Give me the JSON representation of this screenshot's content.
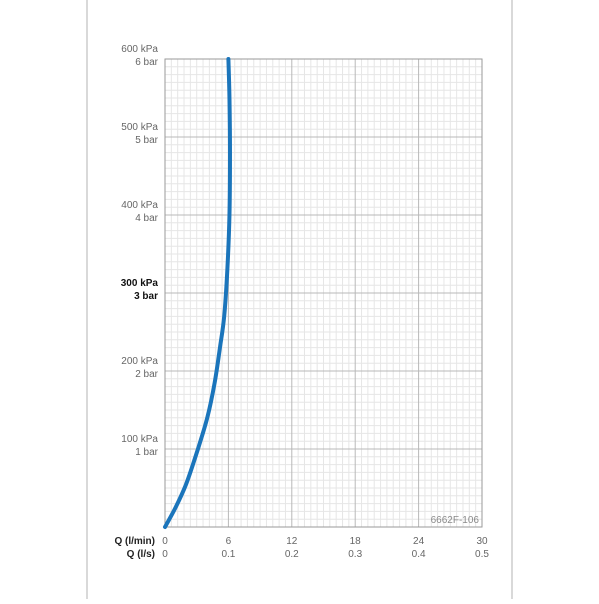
{
  "chart_data": {
    "type": "line",
    "code_label": "6662F-106",
    "x_label_primary": "Q (l/min)",
    "x_label_secondary": "Q (l/s)",
    "x_ticks_primary": [
      "0",
      "6",
      "12",
      "18",
      "24",
      "30"
    ],
    "x_ticks_secondary": [
      "0",
      "0.1",
      "0.2",
      "0.3",
      "0.4",
      "0.5"
    ],
    "xlim": [
      0,
      30
    ],
    "ylim": [
      0,
      600
    ],
    "y_ticks": [
      {
        "value": 100,
        "kpa": "100 kPa",
        "bar": "1 bar",
        "bold": false
      },
      {
        "value": 200,
        "kpa": "200 kPa",
        "bar": "2 bar",
        "bold": false
      },
      {
        "value": 300,
        "kpa": "300 kPa",
        "bar": "3 bar",
        "bold": true
      },
      {
        "value": 400,
        "kpa": "400 kPa",
        "bar": "4 bar",
        "bold": false
      },
      {
        "value": 500,
        "kpa": "500 kPa",
        "bar": "5 bar",
        "bold": false
      },
      {
        "value": 600,
        "kpa": "600 kPa",
        "bar": "6 bar",
        "bold": false
      }
    ],
    "grid": true,
    "series": [
      {
        "color": "#1b75bb",
        "x": [
          0,
          1,
          2,
          3,
          4,
          4.7,
          5.2,
          5.6,
          5.9,
          6.1,
          6.15,
          6.1,
          6.0
        ],
        "y": [
          0,
          25,
          55,
          95,
          140,
          185,
          230,
          270,
          330,
          400,
          480,
          550,
          600
        ]
      }
    ]
  }
}
